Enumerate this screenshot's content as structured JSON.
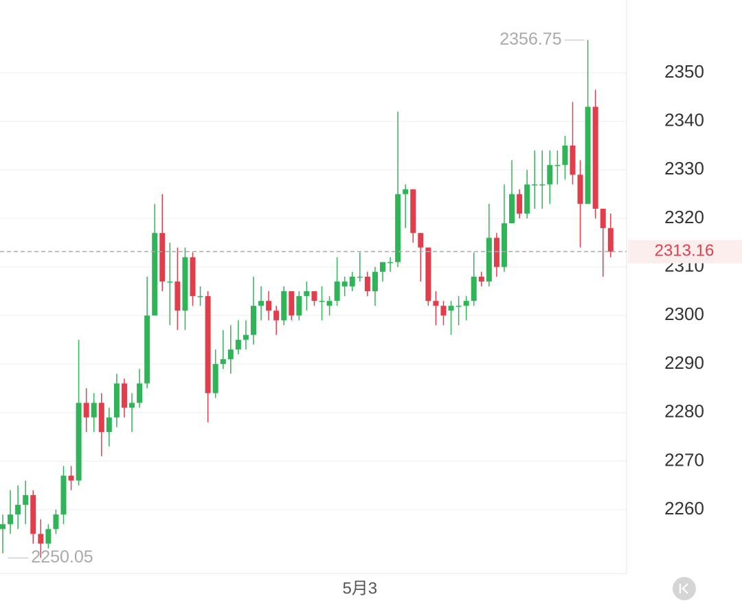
{
  "chart_data": {
    "type": "candlestick",
    "categories": [
      null,
      null,
      null,
      null,
      null,
      null,
      null,
      null,
      null,
      null,
      null,
      null,
      null,
      null,
      null,
      null,
      null,
      null,
      null,
      null,
      null,
      null,
      null,
      null,
      null,
      null,
      null,
      null,
      null,
      null,
      null,
      null,
      null,
      null,
      null,
      null,
      null,
      null,
      null,
      null,
      null,
      null,
      null,
      null,
      null,
      null,
      null,
      "5月3",
      null,
      null,
      null,
      null,
      null,
      null,
      null,
      null,
      null,
      null,
      null,
      null,
      null,
      null,
      null,
      null,
      null,
      null,
      null,
      null,
      null,
      null,
      null,
      null,
      null,
      null,
      null,
      null,
      null,
      null,
      null,
      null,
      null
    ],
    "open": [
      2256,
      2257,
      2259,
      2261,
      2263,
      2255,
      2253,
      2256,
      2259,
      2267,
      2266,
      2282,
      2279,
      2282,
      2276,
      2279,
      2286,
      2281,
      2282,
      2286,
      2300,
      2317,
      2307,
      2307,
      2301,
      2312,
      2304,
      2304,
      2284,
      2290,
      2291,
      2293,
      2295,
      2296,
      2302,
      2303,
      2301,
      2299,
      2305,
      2300,
      2304,
      2305,
      2303,
      2302,
      2303,
      2306,
      2306,
      2308,
      2308,
      2305,
      2309,
      2311,
      2311,
      2325,
      2326,
      2317,
      2314,
      2303,
      2302,
      2301,
      2302,
      2302,
      2303,
      2308,
      2307,
      2316,
      2310,
      2319,
      2325,
      2321,
      2327,
      2327,
      2327,
      2331,
      2331,
      2335,
      2329,
      2323,
      2343,
      2322,
      2318
    ],
    "high": [
      2259,
      2264,
      2265,
      2266,
      2264,
      2258,
      2257,
      2260,
      2269,
      2269,
      2295,
      2285,
      2284,
      2284,
      2281,
      2288,
      2287,
      2284,
      2289,
      2308,
      2323,
      2325,
      2315,
      2314,
      2314,
      2313,
      2306,
      2305,
      2293,
      2297,
      2298,
      2299,
      2299,
      2308,
      2306,
      2305,
      2302,
      2306,
      2305,
      2305,
      2307,
      2305,
      2306,
      2304,
      2312,
      2308,
      2309,
      2313,
      2309,
      2310,
      2311,
      2312,
      2342,
      2327,
      2326,
      2317,
      2314,
      2305,
      2303,
      2303,
      2304,
      2304,
      2313,
      2309,
      2323,
      2317,
      2327,
      2332,
      2326,
      2330,
      2334,
      2334,
      2334,
      2334,
      2337,
      2344,
      2332,
      2356.75,
      2346.5,
      2321,
      2321
    ],
    "low": [
      2251,
      2255,
      2256,
      2257,
      2253,
      2250.05,
      2252,
      2255,
      2257,
      2264,
      2265,
      2276,
      2276,
      2271,
      2273,
      2277,
      2279,
      2276,
      2281,
      2285,
      2300,
      2305,
      2298,
      2297,
      2297,
      2302,
      2302,
      2278,
      2283,
      2289,
      2288,
      2292,
      2293,
      2294,
      2299,
      2299,
      2296,
      2298,
      2299,
      2299,
      2301,
      2302,
      2299,
      2300,
      2302,
      2304,
      2305,
      2307,
      2304,
      2302,
      2307,
      2309,
      2310,
      2318,
      2315,
      2307,
      2302,
      2298,
      2298,
      2296,
      2298,
      2299,
      2302,
      2306,
      2306,
      2308,
      2309,
      2319,
      2320,
      2320,
      2322,
      2322,
      2323,
      2327,
      2328,
      2327,
      2314,
      2323,
      2320,
      2308,
      2312
    ],
    "close": [
      2257,
      2259,
      2261,
      2263,
      2255,
      2253,
      2256,
      2259,
      2267,
      2266,
      2282,
      2279,
      2282,
      2276,
      2279,
      2286,
      2281,
      2282,
      2286,
      2300,
      2317,
      2307,
      2307,
      2301,
      2312,
      2304,
      2304,
      2284,
      2290,
      2291,
      2293,
      2295,
      2296,
      2302,
      2303,
      2301,
      2299,
      2305,
      2300,
      2304,
      2305,
      2303,
      2303,
      2303,
      2307,
      2307,
      2308,
      2308,
      2305,
      2309,
      2311,
      2311,
      2325,
      2326,
      2317,
      2314,
      2303,
      2302,
      2300,
      2302,
      2302,
      2303,
      2308,
      2307,
      2316,
      2310,
      2319,
      2325,
      2321,
      2327,
      2327,
      2327,
      2331,
      2331,
      2335,
      2329,
      2323,
      2343,
      2322,
      2318,
      2313.16
    ],
    "up_color": "#2fb457",
    "down_color": "#e23d4b",
    "ylim": [
      2246.85,
      2365
    ],
    "yticks": [
      2260,
      2270,
      2280,
      2290,
      2300,
      2310,
      2320,
      2330,
      2340,
      2350
    ],
    "grid": true
  }
}
